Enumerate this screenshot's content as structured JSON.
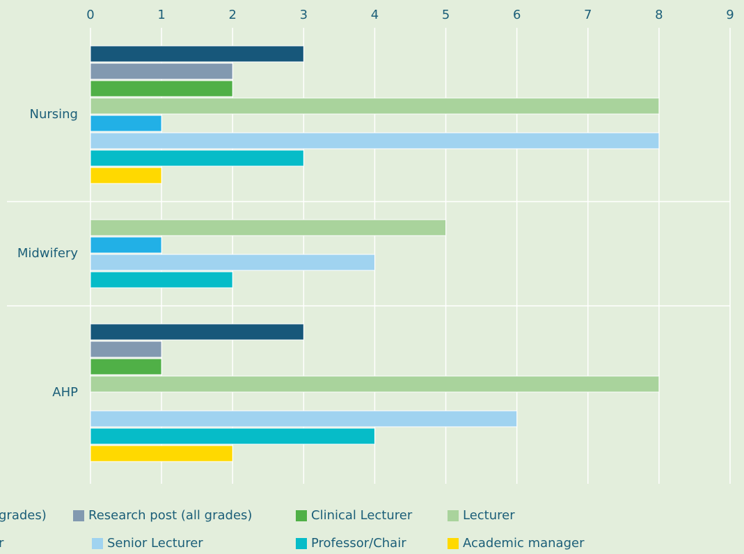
{
  "chart_data": {
    "type": "bar",
    "orientation": "horizontal",
    "categories": [
      "Nursing",
      "Midwifery",
      "AHP"
    ],
    "series": [
      {
        "name": "grades)",
        "color": "#17577a",
        "values": [
          3,
          null,
          3
        ]
      },
      {
        "name": "Research post (all grades)",
        "color": "#8299b0",
        "values": [
          2,
          null,
          1
        ]
      },
      {
        "name": "Clinical Lecturer",
        "color": "#50b047",
        "values": [
          2,
          null,
          1
        ]
      },
      {
        "name": "Lecturer",
        "color": "#a9d39c",
        "values": [
          8,
          5,
          8
        ]
      },
      {
        "name": "r",
        "color": "#22b0e6",
        "values": [
          1,
          1,
          null
        ]
      },
      {
        "name": "Senior Lecturer",
        "color": "#a0d3f0",
        "values": [
          8,
          4,
          6
        ]
      },
      {
        "name": "Professor/Chair",
        "color": "#06bcc8",
        "values": [
          3,
          2,
          4
        ]
      },
      {
        "name": "Academic manager",
        "color": "#ffd900",
        "values": [
          1,
          null,
          2
        ]
      }
    ],
    "xlim": [
      0,
      9
    ],
    "xticks": [
      0,
      1,
      2,
      3,
      4,
      5,
      6,
      7,
      8,
      9
    ],
    "grid": true
  }
}
